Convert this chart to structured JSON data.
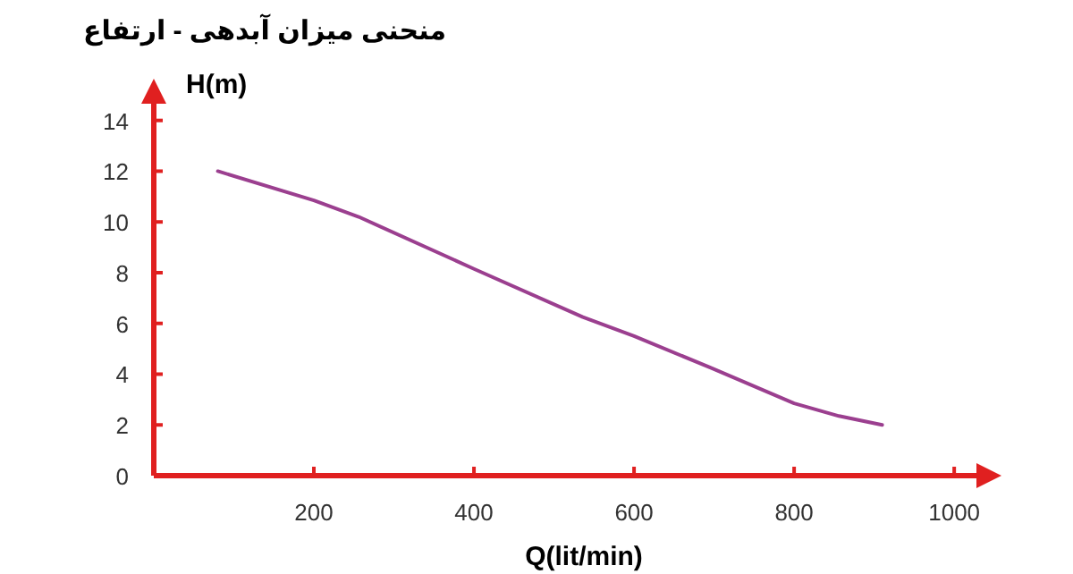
{
  "chart_data": {
    "type": "line",
    "title": "منحنی میزان آبدهی - ارتفاع",
    "xlabel": "Q(lit/min)",
    "ylabel": "H(m)",
    "x": [
      80,
      200,
      256,
      400,
      536,
      600,
      696,
      800,
      856,
      910
    ],
    "series": [
      {
        "color": "#9b3f8f",
        "values": [
          12,
          10.85,
          10.2,
          8.15,
          6.25,
          5.5,
          4.25,
          2.85,
          2.35,
          2.0
        ]
      }
    ],
    "xlim": [
      0,
      1030
    ],
    "ylim": [
      0,
      14.8
    ],
    "xticks": [
      200,
      400,
      600,
      800,
      1000
    ],
    "yticks": [
      0,
      2,
      4,
      6,
      8,
      10,
      12,
      14
    ],
    "grid": false,
    "marker": "none",
    "line_style": "solid"
  }
}
